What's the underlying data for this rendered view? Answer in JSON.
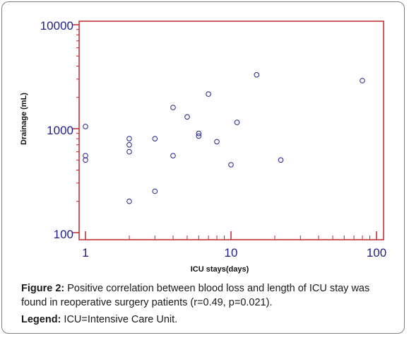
{
  "chart_data": {
    "type": "scatter",
    "xlabel": "ICU stays(days)",
    "ylabel": "Drainage (mL)",
    "x_scale": "log",
    "y_scale": "log",
    "xlim": [
      1,
      100
    ],
    "ylim": [
      100,
      10000
    ],
    "x_ticks": [
      "1",
      "10",
      "100"
    ],
    "y_ticks": [
      "100",
      "1000",
      "10000"
    ],
    "grid": false,
    "points": [
      {
        "x": 1,
        "y": 1050
      },
      {
        "x": 1,
        "y": 550
      },
      {
        "x": 1,
        "y": 500
      },
      {
        "x": 2,
        "y": 800
      },
      {
        "x": 2,
        "y": 700
      },
      {
        "x": 2,
        "y": 600
      },
      {
        "x": 2,
        "y": 200
      },
      {
        "x": 3,
        "y": 800
      },
      {
        "x": 3,
        "y": 250
      },
      {
        "x": 4,
        "y": 1600
      },
      {
        "x": 4,
        "y": 550
      },
      {
        "x": 5,
        "y": 1300
      },
      {
        "x": 6,
        "y": 900
      },
      {
        "x": 6,
        "y": 850
      },
      {
        "x": 7,
        "y": 2150
      },
      {
        "x": 8,
        "y": 750
      },
      {
        "x": 10,
        "y": 450
      },
      {
        "x": 11,
        "y": 1150
      },
      {
        "x": 15,
        "y": 3300
      },
      {
        "x": 22,
        "y": 500
      },
      {
        "x": 80,
        "y": 2900
      }
    ],
    "colors": {
      "frame": "#c0252b",
      "ticks": "#1e1e8c",
      "points": "#1e1e8c"
    }
  },
  "caption": {
    "figure_label": "Figure 2:",
    "figure_text": " Positive correlation between blood loss and length of ICU stay was found in reoperative surgery patients (r=0.49, p=0.021).",
    "legend_label": "Legend:",
    "legend_text": " ICU=Intensive Care Unit."
  }
}
